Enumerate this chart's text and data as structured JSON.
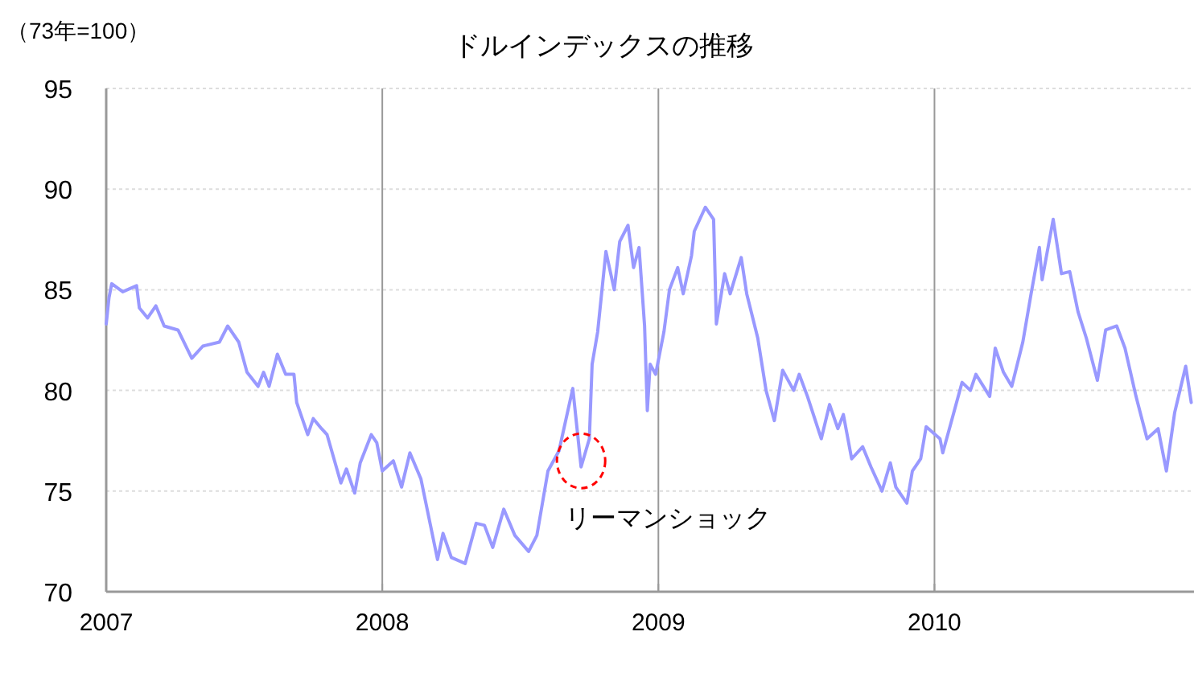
{
  "chart_data": {
    "type": "line",
    "title": "ドルインデックスの推移",
    "ylabel": "（73年=100）",
    "xlim": [
      2007,
      2010.94
    ],
    "xticks": [
      2007,
      2008,
      2009,
      2010
    ],
    "ylim": [
      70,
      95
    ],
    "yticks": [
      70,
      75,
      80,
      85,
      90,
      95
    ],
    "grid": true,
    "marker": "none",
    "line_style": "solid",
    "annotations": [
      {
        "text": "リーマンショック",
        "x": 2008.72,
        "y": 76.5
      }
    ],
    "series": [
      {
        "color": "#9999ff",
        "x": [
          2007.0,
          2007.01,
          2007.02,
          2007.06,
          2007.11,
          2007.12,
          2007.15,
          2007.18,
          2007.21,
          2007.26,
          2007.31,
          2007.35,
          2007.41,
          2007.44,
          2007.48,
          2007.51,
          2007.55,
          2007.57,
          2007.59,
          2007.62,
          2007.65,
          2007.68,
          2007.69,
          2007.73,
          2007.75,
          2007.78,
          2007.8,
          2007.85,
          2007.87,
          2007.9,
          2007.92,
          2007.96,
          2007.98,
          2008.0,
          2008.04,
          2008.07,
          2008.1,
          2008.14,
          2008.17,
          2008.2,
          2008.22,
          2008.25,
          2008.3,
          2008.34,
          2008.37,
          2008.4,
          2008.44,
          2008.48,
          2008.53,
          2008.56,
          2008.6,
          2008.64,
          2008.69,
          2008.72,
          2008.75,
          2008.76,
          2008.78,
          2008.81,
          2008.84,
          2008.86,
          2008.89,
          2008.91,
          2008.93,
          2008.95,
          2008.96,
          2008.97,
          2008.99,
          2009.02,
          2009.04,
          2009.07,
          2009.09,
          2009.12,
          2009.13,
          2009.17,
          2009.2,
          2009.21,
          2009.24,
          2009.26,
          2009.3,
          2009.32,
          2009.36,
          2009.39,
          2009.42,
          2009.45,
          2009.49,
          2009.51,
          2009.54,
          2009.59,
          2009.62,
          2009.65,
          2009.67,
          2009.7,
          2009.74,
          2009.77,
          2009.81,
          2009.84,
          2009.86,
          2009.9,
          2009.92,
          2009.95,
          2009.97,
          2010.02,
          2010.03,
          2010.06,
          2010.1,
          2010.13,
          2010.15,
          2010.2,
          2010.22,
          2010.25,
          2010.28,
          2010.32,
          2010.35,
          2010.38,
          2010.39,
          2010.43,
          2010.46,
          2010.49,
          2010.52,
          2010.55,
          2010.59,
          2010.62,
          2010.66,
          2010.69,
          2010.73,
          2010.77,
          2010.81,
          2010.84,
          2010.87,
          2010.91,
          2010.93
        ],
        "values": [
          83.3,
          84.6,
          85.3,
          84.9,
          85.2,
          84.1,
          83.6,
          84.2,
          83.2,
          83.0,
          81.6,
          82.2,
          82.4,
          83.2,
          82.4,
          80.9,
          80.2,
          80.9,
          80.2,
          81.8,
          80.8,
          80.8,
          79.4,
          77.8,
          78.6,
          78.1,
          77.8,
          75.4,
          76.1,
          74.9,
          76.4,
          77.8,
          77.4,
          76.0,
          76.5,
          75.2,
          76.9,
          75.6,
          73.6,
          71.6,
          72.9,
          71.7,
          71.4,
          73.4,
          73.3,
          72.2,
          74.1,
          72.8,
          72.0,
          72.8,
          76.0,
          77.0,
          80.1,
          76.2,
          77.6,
          81.3,
          82.9,
          86.9,
          85.0,
          87.4,
          88.2,
          86.1,
          87.1,
          83.2,
          79.0,
          81.3,
          80.8,
          82.9,
          85.0,
          86.1,
          84.8,
          86.7,
          87.9,
          89.1,
          88.5,
          83.3,
          85.8,
          84.8,
          86.6,
          84.8,
          82.6,
          80.0,
          78.5,
          81.0,
          80.0,
          80.8,
          79.7,
          77.6,
          79.3,
          78.1,
          78.8,
          76.6,
          77.2,
          76.2,
          75.0,
          76.4,
          75.2,
          74.4,
          76.0,
          76.6,
          78.2,
          77.6,
          76.9,
          78.4,
          80.4,
          80.0,
          80.8,
          79.7,
          82.1,
          80.9,
          80.2,
          82.4,
          84.8,
          87.1,
          85.5,
          88.5,
          85.8,
          85.9,
          83.9,
          82.6,
          80.5,
          83.0,
          83.2,
          82.1,
          79.7,
          77.6,
          78.1,
          76.0,
          78.9,
          81.2,
          79.4
        ]
      }
    ]
  }
}
